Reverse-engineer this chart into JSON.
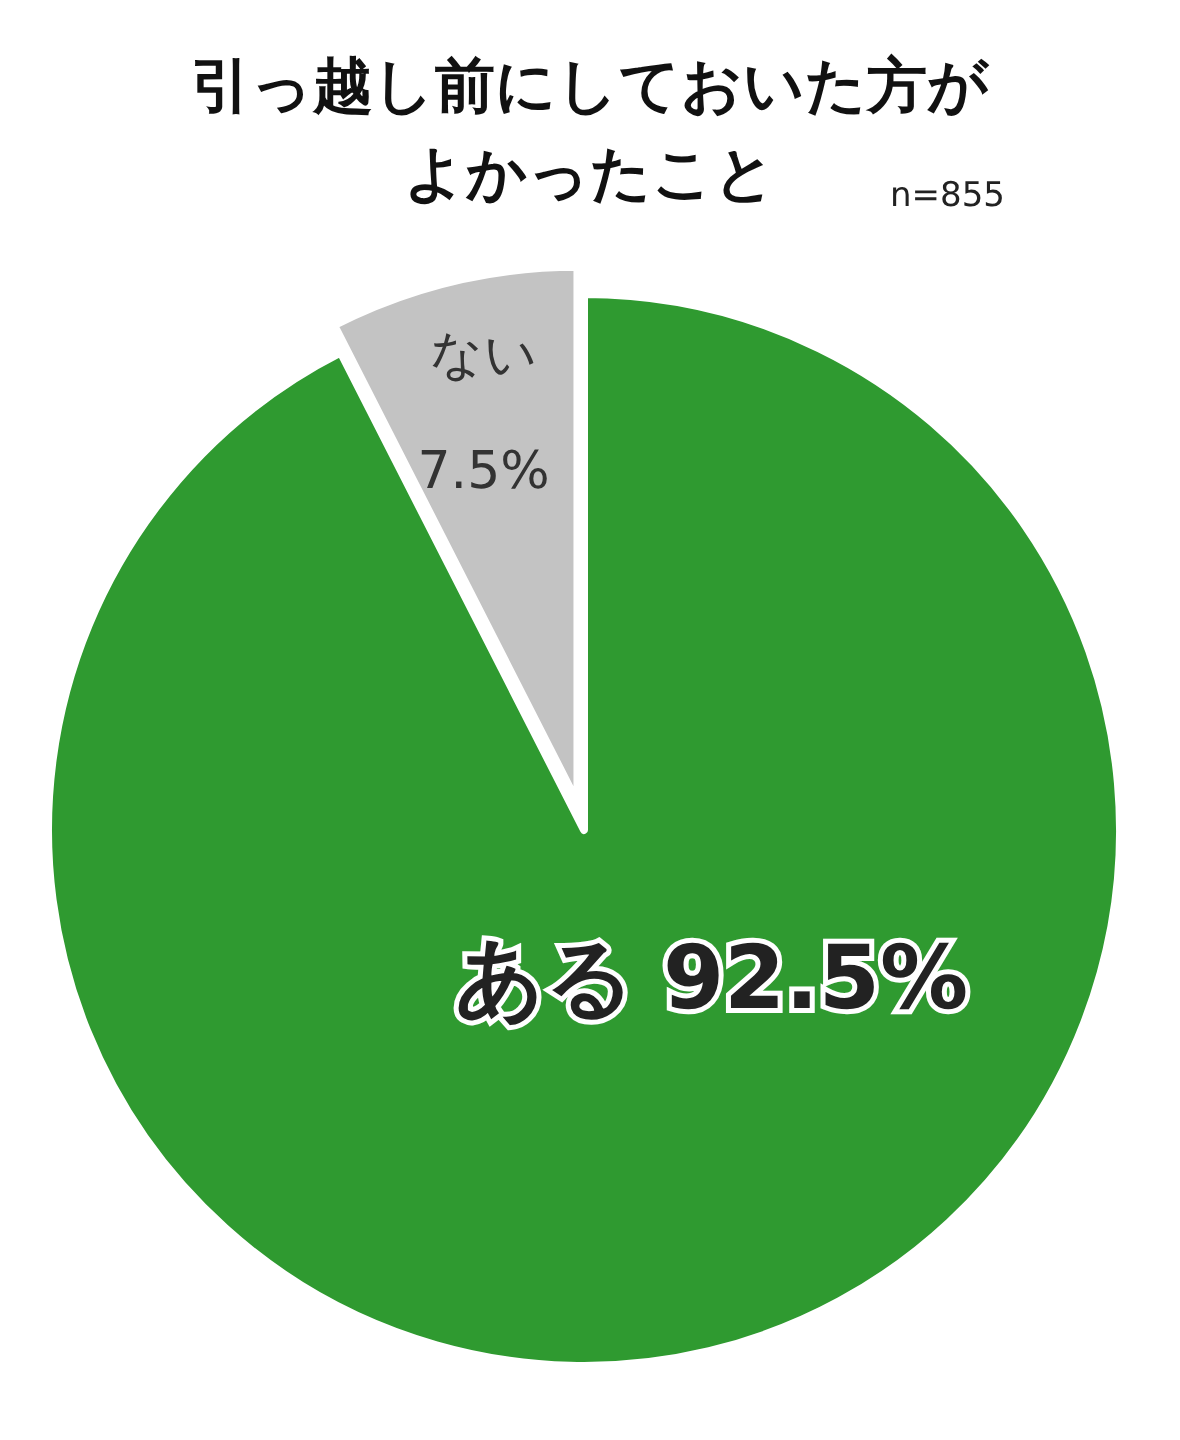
{
  "chart_data": {
    "type": "pie",
    "title": "引っ越し前にしておいた方がよかったこと",
    "annotations": [
      "n=855"
    ],
    "categories": [
      "ある",
      "ない"
    ],
    "values": [
      92.5,
      7.5
    ],
    "value_labels": [
      "92.5%",
      "7.5%"
    ],
    "colors": [
      "#2f9a30",
      "#c3c3c3"
    ]
  }
}
